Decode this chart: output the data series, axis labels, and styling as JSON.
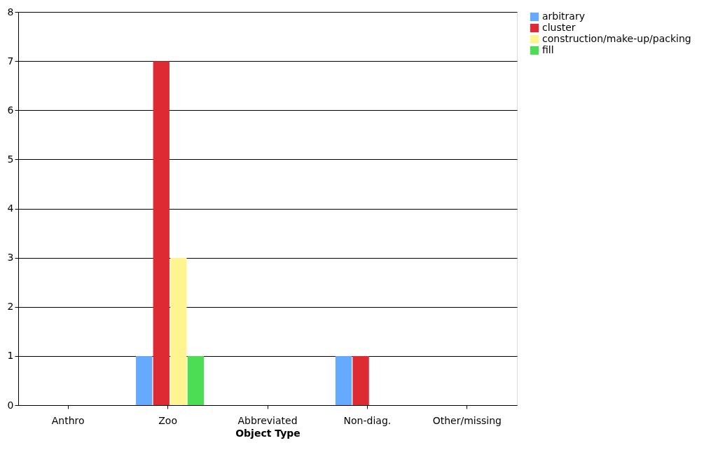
{
  "chart_data": {
    "type": "bar",
    "xlabel": "Object Type",
    "categories": [
      "Anthro",
      "Zoo",
      "Abbreviated",
      "Non-diag.",
      "Other/missing"
    ],
    "series": [
      {
        "name": "arbitrary",
        "color": "#66aaff",
        "values": [
          null,
          1,
          null,
          1,
          null
        ]
      },
      {
        "name": "cluster",
        "color": "#dd2a33",
        "values": [
          null,
          7,
          null,
          1,
          null
        ]
      },
      {
        "name": "construction/make-up/packing",
        "color": "#fff48f",
        "values": [
          null,
          3,
          null,
          null,
          null
        ]
      },
      {
        "name": "fill",
        "color": "#4ddd55",
        "values": [
          null,
          1,
          null,
          null,
          null
        ]
      }
    ],
    "ylim": [
      0,
      8
    ],
    "yticks": [
      0,
      1,
      2,
      3,
      4,
      5,
      6,
      7,
      8
    ],
    "grid": "y",
    "legend": "right"
  }
}
